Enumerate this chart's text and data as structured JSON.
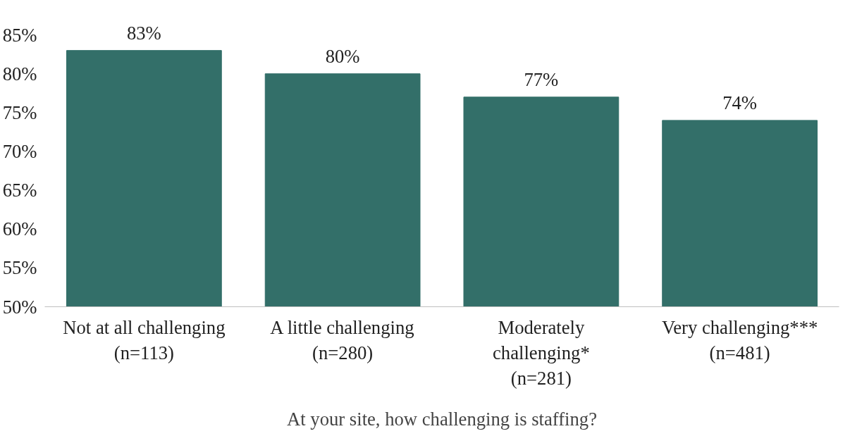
{
  "chart_data": {
    "type": "bar",
    "xlabel": "At your site, how challenging is staffing?",
    "categories": [
      "Not at all challenging\n(n=113)",
      "A little challenging\n(n=280)",
      "Moderately\nchallenging*\n(n=281)",
      "Very challenging***\n(n=481)"
    ],
    "values": [
      83,
      80,
      77,
      74
    ],
    "color": "#336f69",
    "ylim": [
      50,
      85
    ],
    "yticks": [
      {
        "value": 50,
        "label": "50%"
      },
      {
        "value": 55,
        "label": "55%"
      },
      {
        "value": 60,
        "label": "60%"
      },
      {
        "value": 65,
        "label": "65%"
      },
      {
        "value": 70,
        "label": "70%"
      },
      {
        "value": 75,
        "label": "75%"
      },
      {
        "value": 80,
        "label": "80%"
      },
      {
        "value": 85,
        "label": "85%"
      }
    ],
    "data_labels": true,
    "value_labels": [
      "83%",
      "80%",
      "77%",
      "74%"
    ],
    "grid": false
  }
}
